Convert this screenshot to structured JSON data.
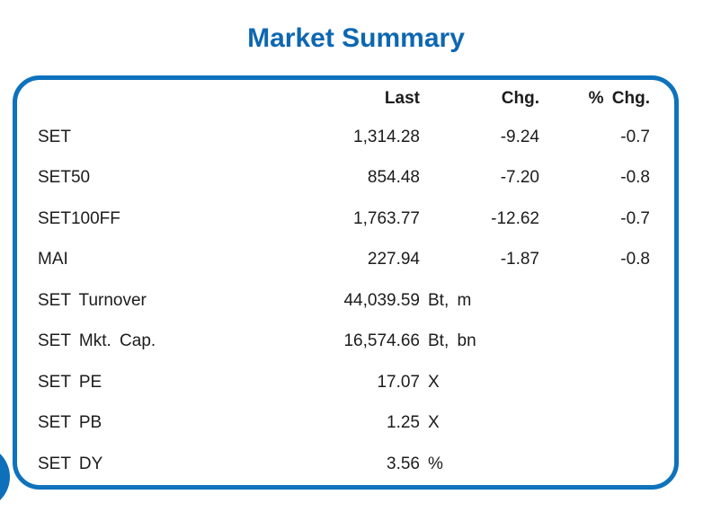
{
  "title": "Market Summary",
  "colors": {
    "title_blue": "#0d67b2",
    "border_blue": "#0e72bd",
    "decoration_blue": "#0e6fba",
    "text": "#1c1c1c"
  },
  "decorations": {
    "corner_badge": "partial-circle-bottom-left"
  },
  "table": {
    "columns": [
      "",
      "Last",
      "Chg.",
      "% Chg."
    ],
    "rows": [
      {
        "label": "SET",
        "last": "1,314.28",
        "unit": "",
        "chg": "-9.24",
        "pct": "-0.7"
      },
      {
        "label": "SET50",
        "last": "854.48",
        "unit": "",
        "chg": "-7.20",
        "pct": "-0.8"
      },
      {
        "label": "SET100FF",
        "last": "1,763.77",
        "unit": "",
        "chg": "-12.62",
        "pct": "-0.7"
      },
      {
        "label": "MAI",
        "last": "227.94",
        "unit": "",
        "chg": "-1.87",
        "pct": "-0.8"
      },
      {
        "label": "SET Turnover",
        "last": "44,039.59",
        "unit": "Bt, m",
        "chg": "",
        "pct": ""
      },
      {
        "label": "SET Mkt. Cap.",
        "last": "16,574.66",
        "unit": "Bt, bn",
        "chg": "",
        "pct": ""
      },
      {
        "label": "SET PE",
        "last": "17.07",
        "unit": "X",
        "chg": "",
        "pct": ""
      },
      {
        "label": "SET PB",
        "last": "1.25",
        "unit": "X",
        "chg": "",
        "pct": ""
      },
      {
        "label": "SET DY",
        "last": "3.56",
        "unit": "%",
        "chg": "",
        "pct": ""
      }
    ]
  }
}
